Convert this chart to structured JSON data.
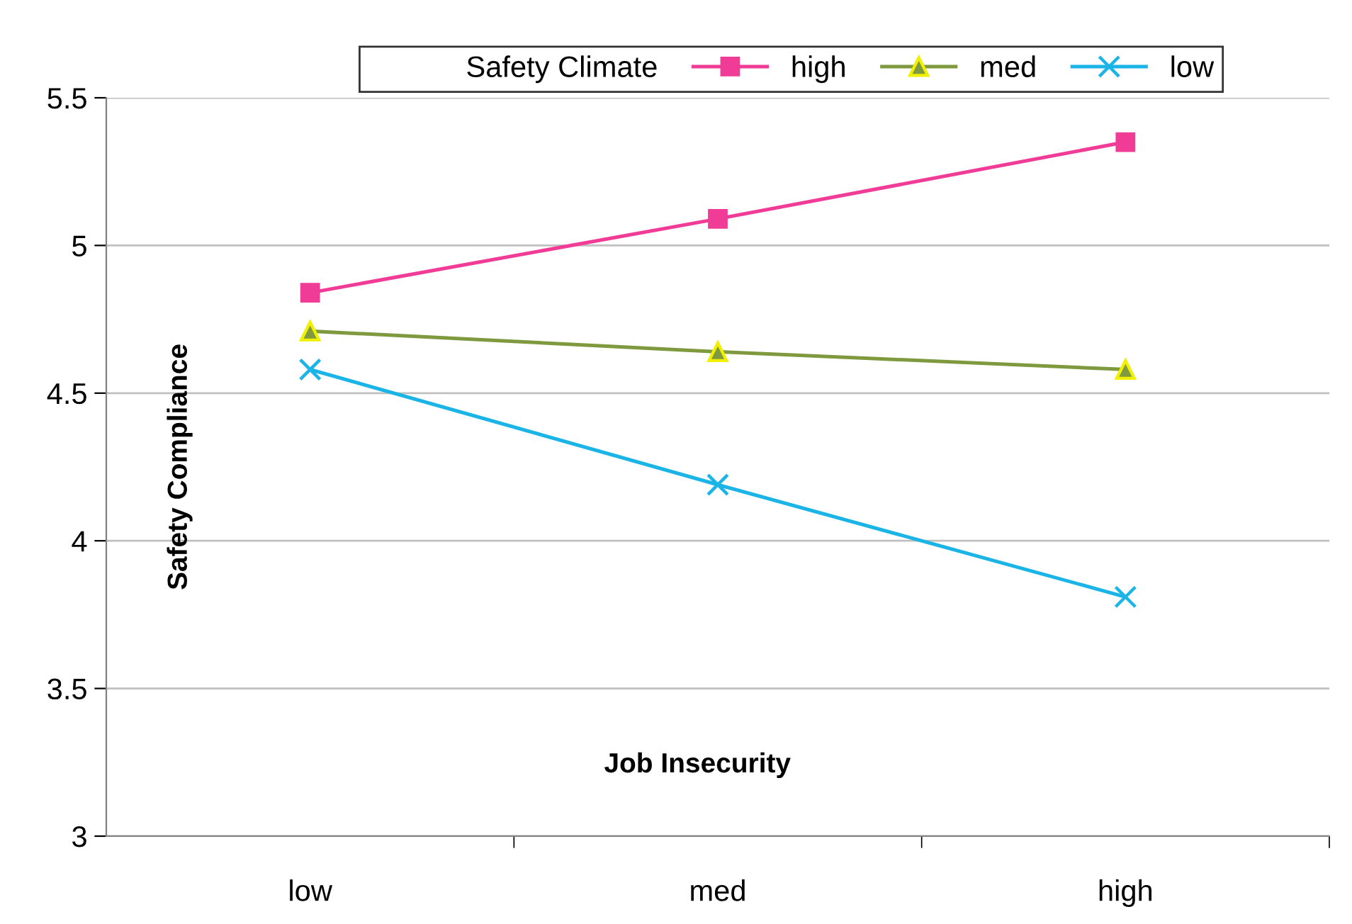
{
  "chart_data": {
    "type": "line",
    "xlabel": "Job Insecurity",
    "ylabel": "Safety Compliance",
    "legend_title": "Safety Climate",
    "categories": [
      "low",
      "med",
      "high"
    ],
    "series": [
      {
        "name": "high",
        "color": "#f03c96",
        "values": [
          4.84,
          5.09,
          5.35
        ],
        "marker": "square"
      },
      {
        "name": "med",
        "color": "#7f9a3e",
        "values": [
          4.71,
          4.64,
          4.58
        ],
        "marker": "triangle"
      },
      {
        "name": "low",
        "color": "#1ab4e6",
        "values": [
          4.58,
          4.19,
          3.81
        ],
        "marker": "cross"
      }
    ],
    "ylim": [
      3,
      5.5
    ],
    "yticks": [
      3,
      3.5,
      4,
      4.5,
      5,
      5.5
    ],
    "grid": "y",
    "legend": "top",
    "line_style": "solid"
  }
}
